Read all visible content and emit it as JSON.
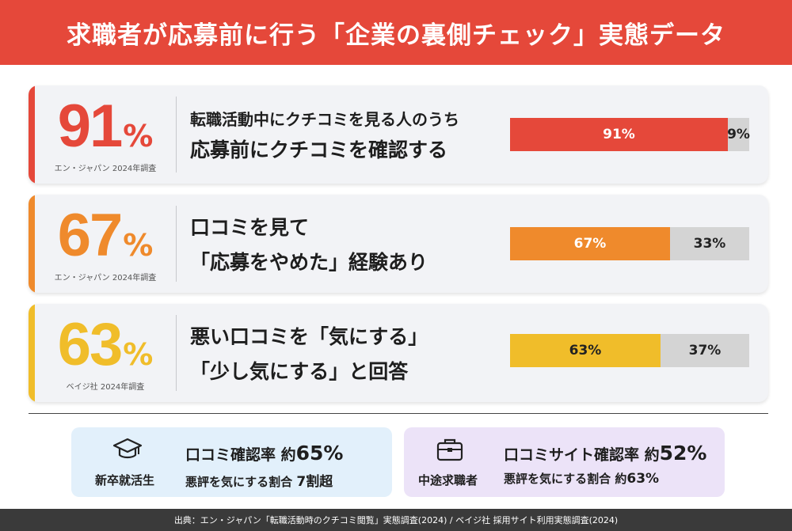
{
  "title": "求職者が応募前に行う「企業の裏側チェック」実態データ",
  "colors": {
    "header": "#e5483a",
    "red": "#e5483a",
    "orange": "#ef8a2c",
    "yellow": "#f0bd2a",
    "rest": "#d4d4d4"
  },
  "cards": [
    {
      "percent": "91",
      "unit": "%",
      "source": "エン・ジャパン 2024年調査",
      "line1": "転職活動中にクチコミを見る人のうち",
      "line2": "応募前にクチコミを確認する",
      "color": "#e5483a",
      "value": 91,
      "value_label": "91%",
      "rest_label": "9%"
    },
    {
      "percent": "67",
      "unit": "%",
      "source": "エン・ジャパン 2024年調査",
      "line1": "口コミを見て",
      "line2": "「応募をやめた」経験あり",
      "color": "#ef8a2c",
      "value": 67,
      "value_label": "67%",
      "rest_label": "33%"
    },
    {
      "percent": "63",
      "unit": "%",
      "source": "ベイジ社 2024年調査",
      "line1": "悪い口コミを「気にする」",
      "line2": "「少し気にする」と回答",
      "color": "#f0bd2a",
      "value": 63,
      "value_label": "63%",
      "rest_label": "37%"
    }
  ],
  "chart_data": {
    "type": "bar",
    "categories": [
      "応募前にクチコミを確認する",
      "「応募をやめた」経験あり",
      "「少し気にする」と回答"
    ],
    "series": [
      {
        "values": [
          91,
          67,
          63
        ]
      },
      {
        "values": [
          9,
          33,
          37
        ]
      }
    ],
    "ylim": [
      0,
      100
    ]
  },
  "boxes": [
    {
      "who": "新卒就活生",
      "icon": "graduation-cap-icon",
      "stat1_prefix": "口コミ確認率 約",
      "stat1_value": "65%",
      "stat2_prefix": "悪評を気にする割合 ",
      "stat2_value": "7割超"
    },
    {
      "who": "中途求職者",
      "icon": "briefcase-icon",
      "stat1_prefix": "口コミサイト確認率 約",
      "stat1_value": "52%",
      "stat2_prefix": "悪評を気にする割合 約",
      "stat2_value": "63%"
    }
  ],
  "footer": "出典：エン・ジャパン「転職活動時のクチコミ閲覧」実態調査(2024) / ベイジ社 採用サイト利用実態調査(2024)"
}
